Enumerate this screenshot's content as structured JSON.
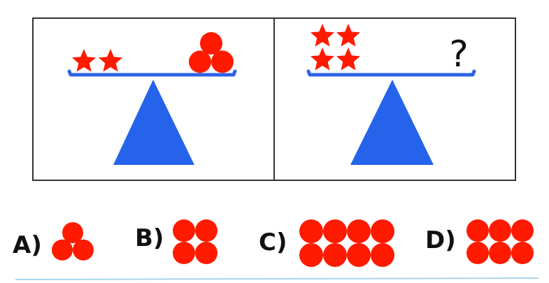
{
  "colors": {
    "shape_fill": "#ff1a00",
    "beam": "#2f63e6",
    "fulcrum": "#2563eb",
    "frame_border": "#333333",
    "bottom_line": "#a9d4ee"
  },
  "panels": [
    {
      "left_pan": {
        "shape": "star",
        "count": 2
      },
      "right_pan": {
        "shape": "circle",
        "count": 3
      }
    },
    {
      "left_pan": {
        "shape": "star",
        "count": 4
      },
      "right_pan": {
        "unknown": "?"
      }
    }
  ],
  "options": [
    {
      "label": "A)",
      "shape": "circle",
      "count": 3
    },
    {
      "label": "B)",
      "shape": "circle",
      "count": 4
    },
    {
      "label": "C)",
      "shape": "circle",
      "count": 8
    },
    {
      "label": "D)",
      "shape": "circle",
      "count": 6
    }
  ]
}
